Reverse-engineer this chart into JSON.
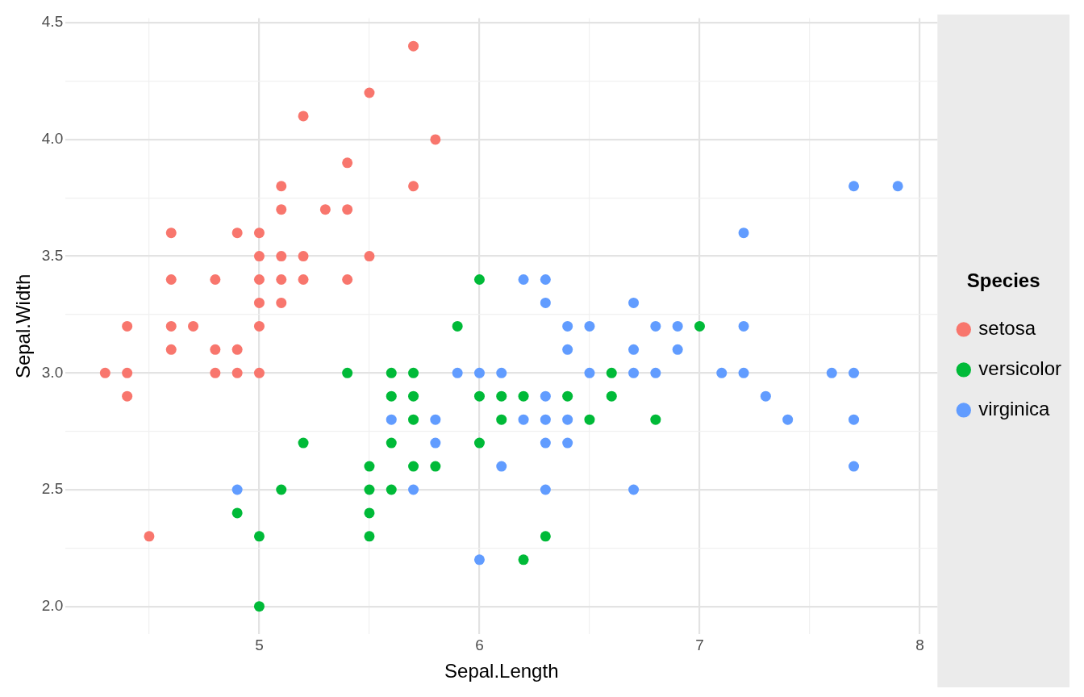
{
  "chart_data": {
    "type": "scatter",
    "xlabel": "Sepal.Length",
    "ylabel": "Sepal.Width",
    "legend_title": "Species",
    "legend": "right",
    "grid": true,
    "marker": "circle",
    "xlim": [
      4.12,
      8.08
    ],
    "ylim": [
      1.88,
      4.52
    ],
    "xticks": [
      {
        "value": 4.5,
        "label": null
      },
      5,
      {
        "value": 5.5,
        "label": null
      },
      6,
      {
        "value": 6.5,
        "label": null
      },
      7,
      {
        "value": 7.5,
        "label": null
      },
      8
    ],
    "yticks": [
      {
        "value": 2,
        "label": "2.0"
      },
      {
        "value": 2.25,
        "label": null
      },
      2.5,
      {
        "value": 2.75,
        "label": null
      },
      {
        "value": 3,
        "label": "3.0"
      },
      {
        "value": 3.25,
        "label": null
      },
      3.5,
      {
        "value": 3.75,
        "label": null
      },
      {
        "value": 4,
        "label": "4.0"
      },
      {
        "value": 4.25,
        "label": null
      },
      4.5
    ],
    "series": [
      {
        "name": "setosa",
        "color": "#f8766d",
        "x": [
          5.1,
          4.9,
          4.7,
          4.6,
          5.0,
          5.4,
          4.6,
          5.0,
          4.4,
          4.9,
          5.4,
          4.8,
          4.8,
          4.3,
          5.8,
          5.7,
          5.1,
          5.7,
          5.4,
          5.1,
          4.6,
          5.1,
          5.0,
          5.2,
          5.2,
          4.8,
          5.2,
          5.5,
          5.0,
          5.5,
          4.9,
          4.4,
          5.1,
          5.0,
          4.5,
          4.4,
          4.6,
          5.3,
          5.0
        ],
        "values": [
          3.5,
          3.0,
          3.2,
          3.1,
          3.6,
          3.9,
          3.4,
          3.4,
          2.9,
          3.1,
          3.7,
          3.4,
          3.0,
          3.0,
          4.0,
          4.4,
          3.8,
          3.8,
          3.4,
          3.7,
          3.6,
          3.3,
          3.0,
          3.5,
          3.4,
          3.1,
          4.1,
          4.2,
          3.2,
          3.5,
          3.6,
          3.0,
          3.4,
          3.5,
          2.3,
          3.2,
          3.2,
          3.7,
          3.3
        ]
      },
      {
        "name": "versicolor",
        "color": "#00ba38",
        "x": [
          7.0,
          5.5,
          6.5,
          5.7,
          4.9,
          6.6,
          5.2,
          5.0,
          6.1,
          5.6,
          5.6,
          6.2,
          5.6,
          5.9,
          6.1,
          6.4,
          6.6,
          6.8,
          6.0,
          5.7,
          5.5,
          6.0,
          5.4,
          6.0,
          6.3,
          5.5,
          5.5,
          5.8,
          5.0,
          5.6,
          5.7,
          5.7,
          6.2,
          5.1
        ],
        "values": [
          3.2,
          2.3,
          2.8,
          2.8,
          2.4,
          2.9,
          2.7,
          2.0,
          2.9,
          2.9,
          3.0,
          2.2,
          2.5,
          3.2,
          2.8,
          2.9,
          3.0,
          2.8,
          2.9,
          2.6,
          2.4,
          2.7,
          3.0,
          3.4,
          2.3,
          2.5,
          2.6,
          2.6,
          2.3,
          2.7,
          3.0,
          2.9,
          2.9,
          2.5
        ]
      },
      {
        "name": "virginica",
        "color": "#619cff",
        "x": [
          6.3,
          5.8,
          7.1,
          6.3,
          6.5,
          7.6,
          4.9,
          7.3,
          6.7,
          7.2,
          6.5,
          6.4,
          6.8,
          5.7,
          5.8,
          6.4,
          7.7,
          7.7,
          6.0,
          6.9,
          5.6,
          7.7,
          6.3,
          6.7,
          7.2,
          6.2,
          6.1,
          6.4,
          7.2,
          7.4,
          7.9,
          6.3,
          6.1,
          7.7,
          6.3,
          6.4,
          6.0,
          6.9,
          6.7,
          6.8,
          6.7,
          6.3,
          6.2,
          5.9
        ],
        "values": [
          3.3,
          2.7,
          3.0,
          2.9,
          3.0,
          3.0,
          2.5,
          2.9,
          2.5,
          3.6,
          3.2,
          2.7,
          3.0,
          2.5,
          2.8,
          3.2,
          3.8,
          2.6,
          2.2,
          3.2,
          2.8,
          2.8,
          2.7,
          3.3,
          3.2,
          2.8,
          3.0,
          2.8,
          3.0,
          2.8,
          3.8,
          2.8,
          2.6,
          3.0,
          3.4,
          3.1,
          3.0,
          3.1,
          3.1,
          3.2,
          3.0,
          2.5,
          3.4,
          3.0
        ]
      }
    ]
  }
}
